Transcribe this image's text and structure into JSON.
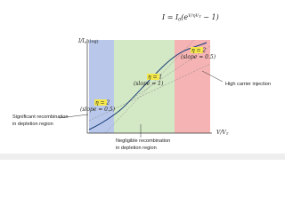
{
  "formula": {
    "lhs": "I = I",
    "lhs_sub": "0",
    "open": "(e",
    "exp": "V/ηV",
    "exp_sub": "T",
    "close": " − 1)"
  },
  "y_axis_label": {
    "main": "I/I",
    "sub": "0",
    "note": " (log)"
  },
  "x_axis_label": {
    "main": "V/V",
    "sub": "T"
  },
  "regions": [
    {
      "eta": "η = 2",
      "slope": "(slope = 0.5)"
    },
    {
      "eta": "η = 1",
      "slope": "(slope = 1)"
    },
    {
      "eta": "η = 2",
      "slope": "(slope = 0.5)"
    }
  ],
  "annotations": {
    "left": [
      "Significant recombination",
      "in depletion region"
    ],
    "bottom": [
      "Negligible recombination",
      "in depletion region"
    ],
    "right": "High carrier injection"
  }
}
